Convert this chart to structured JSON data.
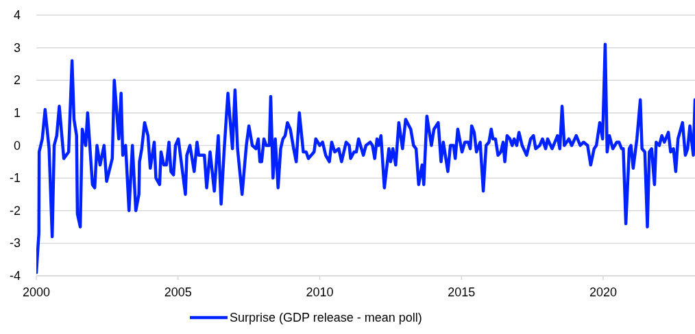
{
  "chart_data": {
    "type": "line",
    "x": [
      2000.0,
      2000.09,
      2000.1,
      2000.21,
      2000.31,
      2000.45,
      2000.56,
      2000.63,
      2000.72,
      2000.81,
      2000.97,
      2001.14,
      2001.26,
      2001.33,
      2001.42,
      2001.45,
      2001.55,
      2001.62,
      2001.74,
      2001.81,
      2001.98,
      2002.06,
      2002.14,
      2002.25,
      2002.39,
      2002.48,
      2002.68,
      2002.75,
      2002.91,
      2002.99,
      2003.05,
      2003.15,
      2003.27,
      2003.39,
      2003.51,
      2003.62,
      2003.64,
      2003.72,
      2003.82,
      2003.94,
      2004.02,
      2004.16,
      2004.22,
      2004.35,
      2004.4,
      2004.5,
      2004.59,
      2004.68,
      2004.75,
      2004.84,
      2004.91,
      2005.01,
      2005.26,
      2005.31,
      2005.42,
      2005.57,
      2005.67,
      2005.73,
      2005.93,
      2006.01,
      2006.13,
      2006.28,
      2006.42,
      2006.52,
      2006.63,
      2006.76,
      2006.92,
      2007.01,
      2007.1,
      2007.26,
      2007.41,
      2007.5,
      2007.62,
      2007.75,
      2007.83,
      2007.89,
      2007.95,
      2008.03,
      2008.11,
      2008.22,
      2008.27,
      2008.35,
      2008.43,
      2008.53,
      2008.62,
      2008.7,
      2008.78,
      2008.86,
      2008.96,
      2009.08,
      2009.17,
      2009.28,
      2009.42,
      2009.52,
      2009.6,
      2009.8,
      2009.86,
      2010.0,
      2010.1,
      2010.21,
      2010.34,
      2010.42,
      2010.53,
      2010.67,
      2010.77,
      2010.93,
      2011.04,
      2011.09,
      2011.21,
      2011.29,
      2011.37,
      2011.54,
      2011.63,
      2011.78,
      2011.86,
      2011.94,
      2012.02,
      2012.08,
      2012.16,
      2012.28,
      2012.44,
      2012.5,
      2012.58,
      2012.68,
      2012.79,
      2012.92,
      2013.03,
      2013.21,
      2013.31,
      2013.4,
      2013.49,
      2013.61,
      2013.67,
      2013.78,
      2013.94,
      2014.03,
      2014.18,
      2014.28,
      2014.36,
      2014.52,
      2014.61,
      2014.72,
      2014.78,
      2014.87,
      2015.02,
      2015.12,
      2015.24,
      2015.31,
      2015.36,
      2015.45,
      2015.53,
      2015.66,
      2015.77,
      2015.87,
      2015.97,
      2016.05,
      2016.11,
      2016.2,
      2016.29,
      2016.39,
      2016.47,
      2016.53,
      2016.61,
      2016.71,
      2016.79,
      2016.86,
      2016.95,
      2017.03,
      2017.14,
      2017.3,
      2017.44,
      2017.54,
      2017.62,
      2017.76,
      2017.86,
      2017.97,
      2018.04,
      2018.2,
      2018.39,
      2018.47,
      2018.55,
      2018.63,
      2018.79,
      2018.89,
      2019.05,
      2019.19,
      2019.31,
      2019.45,
      2019.56,
      2019.68,
      2019.76,
      2019.88,
      2019.98,
      2020.07,
      2020.14,
      2020.22,
      2020.34,
      2020.48,
      2020.56,
      2020.65,
      2020.71,
      2020.8,
      2020.92,
      2020.98,
      2021.06,
      2021.19,
      2021.31,
      2021.37,
      2021.47,
      2021.56,
      2021.63,
      2021.71,
      2021.81,
      2021.87,
      2021.98,
      2022.07,
      2022.16,
      2022.3,
      2022.38,
      2022.48,
      2022.56,
      2022.64,
      2022.8,
      2022.9,
      2022.98,
      2023.06,
      2023.18,
      2023.24
    ],
    "series": [
      {
        "name": "Surprise (GDP release - mean poll)",
        "color": "#0022ff",
        "values": [
          -3.9,
          -2.7,
          -0.2,
          0.2,
          1.1,
          -0.1,
          -2.8,
          0,
          0.3,
          1.2,
          -0.4,
          -0.2,
          2.6,
          0.8,
          0.3,
          -2.1,
          -2.5,
          0.5,
          0,
          1.0,
          -1.2,
          -1.3,
          0,
          -0.6,
          0,
          -1.1,
          -0.4,
          2.0,
          0.2,
          1.6,
          -0.3,
          0,
          -2.0,
          0,
          -2.0,
          -1.5,
          -0.5,
          -0.1,
          0.7,
          0.3,
          -0.7,
          0.1,
          -1.0,
          -1.2,
          -0.2,
          -0.6,
          -0.6,
          0.1,
          -0.8,
          -0.9,
          0,
          0.2,
          -1.5,
          -0.3,
          0,
          -0.8,
          0.1,
          -0.3,
          -0.3,
          -1.3,
          -0.2,
          -1.4,
          0.3,
          -1.8,
          -0.1,
          1.6,
          -0.1,
          1.7,
          -0.1,
          -1.5,
          0,
          0.6,
          0,
          -0.1,
          0.2,
          -0.5,
          -0.5,
          0.2,
          0,
          0,
          1.5,
          -1.0,
          0.2,
          -1.3,
          -0.1,
          0.2,
          0.3,
          0.7,
          0.5,
          -0.1,
          -0.5,
          1.0,
          -0.2,
          -0.2,
          -0.4,
          -0.2,
          0.2,
          0,
          0.1,
          -0.3,
          -0.5,
          0.1,
          -0.2,
          -0.1,
          -0.5,
          0.1,
          0,
          -0.4,
          -0.2,
          -0.2,
          0.2,
          -0.3,
          0,
          0.1,
          0,
          -0.4,
          0.2,
          0,
          0.3,
          -1.3,
          -0.1,
          -0.5,
          -0.1,
          -0.6,
          0.7,
          -0.1,
          0.8,
          0.5,
          0,
          -0.1,
          -1.2,
          -0.6,
          -1.2,
          0.9,
          0,
          0.5,
          0.7,
          -0.5,
          0.1,
          -0.8,
          0,
          0,
          -0.4,
          0.5,
          -0.2,
          0.1,
          0.1,
          -0.1,
          0.6,
          0.4,
          -0.2,
          0.1,
          -1.4,
          0,
          0.1,
          0.5,
          0.2,
          0.2,
          -0.3,
          -0.2,
          0.1,
          -0.5,
          0.3,
          0.2,
          0,
          0.2,
          0,
          0.4,
          0,
          -0.3,
          0.2,
          0.3,
          -0.1,
          0,
          0.2,
          -0.1,
          0.2,
          -0.1,
          0.3,
          -0.1,
          1.2,
          0,
          0.2,
          0,
          0.3,
          0,
          0.1,
          0,
          -0.6,
          -0.1,
          0,
          0.7,
          0.2,
          3.1,
          -0.2,
          0.3,
          -0.1,
          0.1,
          0.1,
          -0.1,
          -0.1,
          -2.4,
          -0.1,
          0,
          -0.7,
          0.2,
          1.4,
          -0.1,
          -0.2,
          -2.5,
          -0.2,
          -0.1,
          -1.2,
          0.1,
          0,
          0.3,
          0.1,
          0.4,
          -0.2,
          -0.1,
          -0.8,
          0.2,
          0.7,
          -0.3,
          -0.1,
          0.6,
          -0.3,
          1.4
        ]
      }
    ],
    "xlim": [
      2000,
      2023.24
    ],
    "xticks": [
      2000,
      2005,
      2010,
      2015,
      2020
    ],
    "ylim": [
      -4,
      4
    ],
    "yticks": [
      -4,
      -3,
      -2,
      -1,
      0,
      1,
      2,
      3,
      4
    ],
    "grid": "y",
    "legend": "bottom",
    "line_style": "solid",
    "marker": "none"
  }
}
